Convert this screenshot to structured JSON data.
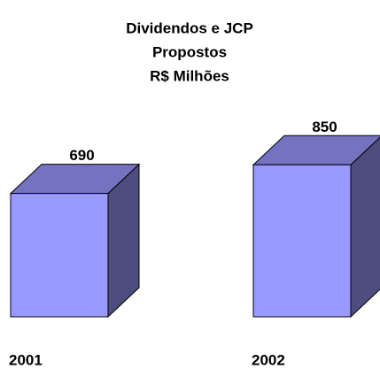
{
  "chart_data": {
    "type": "bar3d",
    "title": [
      "Dividendos e JCP",
      "Propostos",
      "R$ Milhões"
    ],
    "categories": [
      "2001",
      "2002"
    ],
    "values": [
      690,
      850
    ],
    "color": "#9999ff",
    "ylim": [
      0,
      1000
    ]
  }
}
